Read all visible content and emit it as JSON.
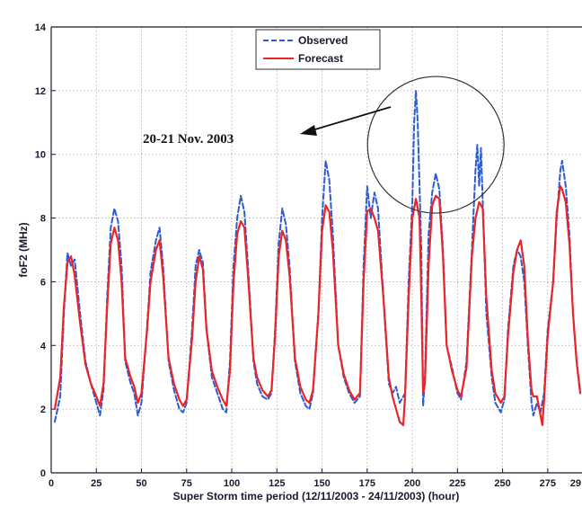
{
  "chart_data": {
    "type": "line",
    "title": "",
    "xlabel": "Super Storm time period (12/11/2003 - 24/11/2003) (hour)",
    "ylabel": "foF2 (MHz)",
    "xlim": [
      0,
      290
    ],
    "ylim": [
      0,
      14
    ],
    "x_ticks": [
      "0",
      "25",
      "50",
      "75",
      "100",
      "125",
      "150",
      "175",
      "200",
      "225",
      "250",
      "275",
      "29"
    ],
    "y_ticks": [
      "0",
      "2",
      "4",
      "6",
      "8",
      "10",
      "12",
      "14"
    ],
    "grid": true,
    "legend_position": "top-center",
    "annotation": {
      "text": "20-21 Nov. 2003",
      "arrow": true,
      "circle_center": [
        213,
        10.3
      ]
    },
    "series": [
      {
        "name": "Observed",
        "color": "#2f5bd0",
        "style": "dashed",
        "points": [
          [
            2,
            1.6
          ],
          [
            5,
            2.4
          ],
          [
            7,
            5.0
          ],
          [
            9,
            6.9
          ],
          [
            11,
            6.5
          ],
          [
            13,
            6.7
          ],
          [
            16,
            5.0
          ],
          [
            19,
            3.5
          ],
          [
            22,
            2.8
          ],
          [
            25,
            2.2
          ],
          [
            27,
            1.8
          ],
          [
            29,
            2.6
          ],
          [
            31,
            5.5
          ],
          [
            33,
            7.7
          ],
          [
            35,
            8.3
          ],
          [
            37,
            7.9
          ],
          [
            39,
            6.5
          ],
          [
            41,
            3.5
          ],
          [
            44,
            2.8
          ],
          [
            46,
            2.5
          ],
          [
            48,
            1.8
          ],
          [
            50,
            2.2
          ],
          [
            53,
            4.5
          ],
          [
            55,
            6.3
          ],
          [
            58,
            7.3
          ],
          [
            60,
            7.7
          ],
          [
            62,
            6.5
          ],
          [
            65,
            3.5
          ],
          [
            68,
            2.6
          ],
          [
            71,
            2.0
          ],
          [
            73,
            1.9
          ],
          [
            75,
            2.2
          ],
          [
            78,
            4.5
          ],
          [
            80,
            6.5
          ],
          [
            82,
            7.0
          ],
          [
            84,
            6.6
          ],
          [
            86,
            4.5
          ],
          [
            89,
            3.0
          ],
          [
            92,
            2.5
          ],
          [
            95,
            2.0
          ],
          [
            97,
            1.9
          ],
          [
            99,
            3.5
          ],
          [
            101,
            6.5
          ],
          [
            103,
            8.0
          ],
          [
            105,
            8.7
          ],
          [
            107,
            8.2
          ],
          [
            109,
            6.5
          ],
          [
            112,
            3.5
          ],
          [
            114,
            2.8
          ],
          [
            117,
            2.4
          ],
          [
            120,
            2.3
          ],
          [
            122,
            2.5
          ],
          [
            124,
            4.5
          ],
          [
            126,
            7.2
          ],
          [
            128,
            8.3
          ],
          [
            130,
            7.8
          ],
          [
            132,
            6.5
          ],
          [
            135,
            3.5
          ],
          [
            138,
            2.5
          ],
          [
            141,
            2.1
          ],
          [
            143,
            2.0
          ],
          [
            145,
            2.5
          ],
          [
            148,
            5.0
          ],
          [
            150,
            8.0
          ],
          [
            152,
            9.8
          ],
          [
            154,
            9.2
          ],
          [
            156,
            7.5
          ],
          [
            159,
            4.0
          ],
          [
            162,
            3.0
          ],
          [
            165,
            2.5
          ],
          [
            168,
            2.2
          ],
          [
            171,
            2.4
          ],
          [
            173,
            6.5
          ],
          [
            175,
            9.0
          ],
          [
            177,
            8.0
          ],
          [
            179,
            8.8
          ],
          [
            181,
            8.3
          ],
          [
            184,
            5.5
          ],
          [
            187,
            2.8
          ],
          [
            189,
            2.5
          ],
          [
            191,
            2.7
          ],
          [
            193,
            2.2
          ],
          [
            196,
            2.5
          ],
          [
            198,
            6.0
          ],
          [
            200,
            8.5
          ],
          [
            201,
            11.0
          ],
          [
            202,
            12.0
          ],
          [
            203,
            11.0
          ],
          [
            204,
            9.0
          ],
          [
            205,
            7.0
          ],
          [
            206,
            2.1
          ],
          [
            207,
            3.0
          ],
          [
            209,
            7.5
          ],
          [
            211,
            8.8
          ],
          [
            213,
            9.4
          ],
          [
            215,
            8.9
          ],
          [
            217,
            7.0
          ],
          [
            219,
            4.0
          ],
          [
            222,
            3.3
          ],
          [
            225,
            2.5
          ],
          [
            227,
            2.3
          ],
          [
            230,
            3.5
          ],
          [
            233,
            7.0
          ],
          [
            235,
            9.5
          ],
          [
            236,
            10.3
          ],
          [
            237,
            9.0
          ],
          [
            238,
            10.2
          ],
          [
            239,
            8.5
          ],
          [
            241,
            5.0
          ],
          [
            244,
            3.0
          ],
          [
            246,
            2.2
          ],
          [
            249,
            1.9
          ],
          [
            251,
            2.3
          ],
          [
            253,
            4.5
          ],
          [
            256,
            6.5
          ],
          [
            258,
            7.0
          ],
          [
            260,
            6.8
          ],
          [
            262,
            6.0
          ],
          [
            264,
            4.0
          ],
          [
            266,
            2.2
          ],
          [
            267,
            1.8
          ],
          [
            269,
            2.2
          ],
          [
            271,
            1.9
          ],
          [
            273,
            2.5
          ],
          [
            275,
            4.5
          ],
          [
            278,
            6.0
          ],
          [
            280,
            8.0
          ],
          [
            282,
            9.5
          ],
          [
            283,
            9.8
          ],
          [
            285,
            9.0
          ],
          [
            287,
            7.5
          ],
          [
            289,
            5.0
          ],
          [
            291,
            3.5
          ],
          [
            293,
            2.6
          ]
        ]
      },
      {
        "name": "Forecast",
        "color": "#e8262a",
        "style": "solid",
        "points": [
          [
            2,
            2.0
          ],
          [
            5,
            3.0
          ],
          [
            7,
            5.2
          ],
          [
            9,
            6.6
          ],
          [
            11,
            6.8
          ],
          [
            13,
            6.2
          ],
          [
            16,
            4.7
          ],
          [
            19,
            3.4
          ],
          [
            22,
            2.8
          ],
          [
            25,
            2.4
          ],
          [
            27,
            2.1
          ],
          [
            29,
            2.8
          ],
          [
            31,
            5.2
          ],
          [
            33,
            7.2
          ],
          [
            35,
            7.7
          ],
          [
            37,
            7.3
          ],
          [
            39,
            6.0
          ],
          [
            41,
            3.6
          ],
          [
            44,
            3.0
          ],
          [
            46,
            2.7
          ],
          [
            48,
            2.2
          ],
          [
            50,
            2.5
          ],
          [
            53,
            4.4
          ],
          [
            55,
            6.0
          ],
          [
            58,
            7.0
          ],
          [
            60,
            7.3
          ],
          [
            62,
            6.2
          ],
          [
            65,
            3.6
          ],
          [
            68,
            2.8
          ],
          [
            71,
            2.3
          ],
          [
            73,
            2.1
          ],
          [
            75,
            2.3
          ],
          [
            78,
            4.2
          ],
          [
            80,
            6.0
          ],
          [
            82,
            6.8
          ],
          [
            84,
            6.4
          ],
          [
            86,
            4.5
          ],
          [
            89,
            3.2
          ],
          [
            92,
            2.7
          ],
          [
            95,
            2.3
          ],
          [
            97,
            2.1
          ],
          [
            99,
            3.2
          ],
          [
            101,
            6.0
          ],
          [
            103,
            7.5
          ],
          [
            105,
            7.9
          ],
          [
            107,
            7.7
          ],
          [
            109,
            6.2
          ],
          [
            112,
            3.6
          ],
          [
            114,
            3.0
          ],
          [
            117,
            2.6
          ],
          [
            120,
            2.4
          ],
          [
            122,
            2.6
          ],
          [
            124,
            4.3
          ],
          [
            126,
            6.8
          ],
          [
            128,
            7.6
          ],
          [
            130,
            7.3
          ],
          [
            132,
            6.2
          ],
          [
            135,
            3.6
          ],
          [
            138,
            2.7
          ],
          [
            141,
            2.3
          ],
          [
            143,
            2.2
          ],
          [
            145,
            2.6
          ],
          [
            148,
            5.0
          ],
          [
            150,
            7.6
          ],
          [
            152,
            8.4
          ],
          [
            154,
            8.2
          ],
          [
            156,
            7.0
          ],
          [
            159,
            4.0
          ],
          [
            162,
            3.1
          ],
          [
            165,
            2.6
          ],
          [
            168,
            2.3
          ],
          [
            171,
            2.5
          ],
          [
            173,
            6.0
          ],
          [
            175,
            8.2
          ],
          [
            177,
            8.3
          ],
          [
            179,
            8.0
          ],
          [
            181,
            7.6
          ],
          [
            184,
            5.5
          ],
          [
            187,
            3.0
          ],
          [
            189,
            2.4
          ],
          [
            191,
            2.0
          ],
          [
            193,
            1.6
          ],
          [
            195,
            1.5
          ],
          [
            196,
            2.4
          ],
          [
            198,
            5.5
          ],
          [
            200,
            8.0
          ],
          [
            202,
            8.6
          ],
          [
            204,
            8.0
          ],
          [
            205,
            5.5
          ],
          [
            206,
            2.5
          ],
          [
            207,
            2.8
          ],
          [
            209,
            6.5
          ],
          [
            211,
            8.4
          ],
          [
            213,
            8.7
          ],
          [
            215,
            8.6
          ],
          [
            217,
            6.8
          ],
          [
            219,
            4.0
          ],
          [
            222,
            3.2
          ],
          [
            225,
            2.6
          ],
          [
            227,
            2.4
          ],
          [
            230,
            3.3
          ],
          [
            233,
            6.8
          ],
          [
            235,
            8.0
          ],
          [
            237,
            8.5
          ],
          [
            239,
            8.3
          ],
          [
            241,
            5.5
          ],
          [
            244,
            3.2
          ],
          [
            246,
            2.5
          ],
          [
            249,
            2.2
          ],
          [
            251,
            2.4
          ],
          [
            253,
            4.3
          ],
          [
            256,
            6.3
          ],
          [
            258,
            7.0
          ],
          [
            260,
            7.3
          ],
          [
            262,
            6.5
          ],
          [
            264,
            4.2
          ],
          [
            266,
            2.6
          ],
          [
            267,
            2.4
          ],
          [
            269,
            2.4
          ],
          [
            271,
            1.8
          ],
          [
            272,
            1.5
          ],
          [
            273,
            2.3
          ],
          [
            275,
            4.3
          ],
          [
            278,
            6.0
          ],
          [
            280,
            8.2
          ],
          [
            282,
            9.0
          ],
          [
            283,
            8.9
          ],
          [
            285,
            8.5
          ],
          [
            287,
            7.2
          ],
          [
            289,
            5.0
          ],
          [
            291,
            3.5
          ],
          [
            293,
            2.5
          ]
        ]
      }
    ]
  }
}
